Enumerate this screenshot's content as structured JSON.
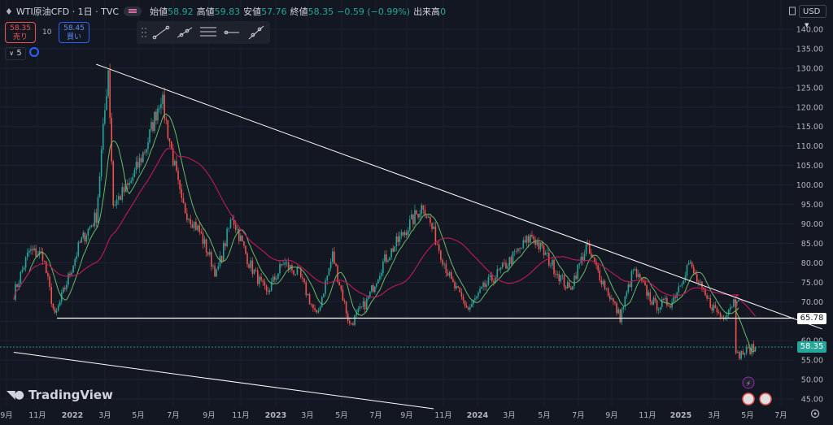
{
  "header": {
    "symbol": "WTI原油CFD · 1日 · TVC",
    "open_label": "始値",
    "open_value": "58.92",
    "high_label": "高値",
    "high_value": "59.83",
    "low_label": "安値",
    "low_value": "57.76",
    "close_label": "終値",
    "close_value": "58.35",
    "change": "−0.59 (−0.99%)",
    "volume_label": "出来高",
    "volume_value": "0"
  },
  "trade": {
    "sell_price": "58.35",
    "sell_label": "売り",
    "spread": "10",
    "buy_price": "58.45",
    "buy_label": "買い"
  },
  "indicator_count": "5",
  "currency": "USD",
  "brand": "TradingView",
  "colors": {
    "background": "#131722",
    "up": "#26a69a",
    "down": "#ef5350",
    "ma_short": "#66bb6a",
    "ma_long": "#c2185b",
    "trendline": "#ffffff"
  },
  "chart_data": {
    "type": "candlestick",
    "timeframe": "1日",
    "y_axis_ticks": [
      "140.00",
      "135.00",
      "130.00",
      "125.00",
      "120.00",
      "115.00",
      "110.00",
      "105.00",
      "100.00",
      "95.00",
      "90.00",
      "85.00",
      "80.00",
      "75.00",
      "70.00",
      "65.00",
      "60.00",
      "55.00",
      "50.00",
      "45.00"
    ],
    "ylim": [
      43,
      143
    ],
    "x_axis_ticks": [
      "9月",
      "11月",
      "2022",
      "3月",
      "5月",
      "7月",
      "9月",
      "11月",
      "2023",
      "3月",
      "5月",
      "7月",
      "9月",
      "11月",
      "2024",
      "3月",
      "5月",
      "7月",
      "9月",
      "11月",
      "2025",
      "3月",
      "5月",
      "7月"
    ],
    "price_path": [
      {
        "date": "2021-09",
        "price": 72
      },
      {
        "date": "2021-10",
        "price": 83
      },
      {
        "date": "2021-11-10",
        "price": 82
      },
      {
        "date": "2021-12-01",
        "price": 66
      },
      {
        "date": "2022-01",
        "price": 85
      },
      {
        "date": "2022-02",
        "price": 92
      },
      {
        "date": "2022-03-07",
        "price": 130
      },
      {
        "date": "2022-03-16",
        "price": 95
      },
      {
        "date": "2022-04",
        "price": 100
      },
      {
        "date": "2022-05",
        "price": 110
      },
      {
        "date": "2022-06-10",
        "price": 123
      },
      {
        "date": "2022-07",
        "price": 95
      },
      {
        "date": "2022-08",
        "price": 88
      },
      {
        "date": "2022-09",
        "price": 77
      },
      {
        "date": "2022-10",
        "price": 92
      },
      {
        "date": "2022-11",
        "price": 80
      },
      {
        "date": "2022-12",
        "price": 72
      },
      {
        "date": "2023-01",
        "price": 80
      },
      {
        "date": "2023-02",
        "price": 77
      },
      {
        "date": "2023-03-17",
        "price": 66
      },
      {
        "date": "2023-04",
        "price": 82
      },
      {
        "date": "2023-05",
        "price": 64
      },
      {
        "date": "2023-06",
        "price": 70
      },
      {
        "date": "2023-07",
        "price": 80
      },
      {
        "date": "2023-09-28",
        "price": 95
      },
      {
        "date": "2023-11",
        "price": 75
      },
      {
        "date": "2023-12",
        "price": 68
      },
      {
        "date": "2024-01",
        "price": 74
      },
      {
        "date": "2024-02",
        "price": 78
      },
      {
        "date": "2024-04-10",
        "price": 87
      },
      {
        "date": "2024-06",
        "price": 73
      },
      {
        "date": "2024-07",
        "price": 84
      },
      {
        "date": "2024-09",
        "price": 66
      },
      {
        "date": "2024-10-07",
        "price": 78
      },
      {
        "date": "2024-11",
        "price": 69
      },
      {
        "date": "2024-12",
        "price": 70
      },
      {
        "date": "2025-01-15",
        "price": 80
      },
      {
        "date": "2025-02",
        "price": 71
      },
      {
        "date": "2025-03",
        "price": 66
      },
      {
        "date": "2025-04",
        "price": 72
      },
      {
        "date": "2025-04-10",
        "price": 56
      },
      {
        "date": "2025-05",
        "price": 58.35
      }
    ],
    "current_price": 58.35,
    "horizontal_line": 65.78,
    "trendline_upper": {
      "from": {
        "date": "2022-02",
        "price": 131
      },
      "to": {
        "date": "2025-09",
        "price": 63
      }
    },
    "trendline_lower": {
      "from": {
        "date": "2021-09",
        "price": 57
      },
      "to": {
        "date": "2023-10",
        "price": 42.5
      }
    },
    "moving_averages": [
      "short (green)",
      "long (magenta)"
    ],
    "grid": true
  }
}
